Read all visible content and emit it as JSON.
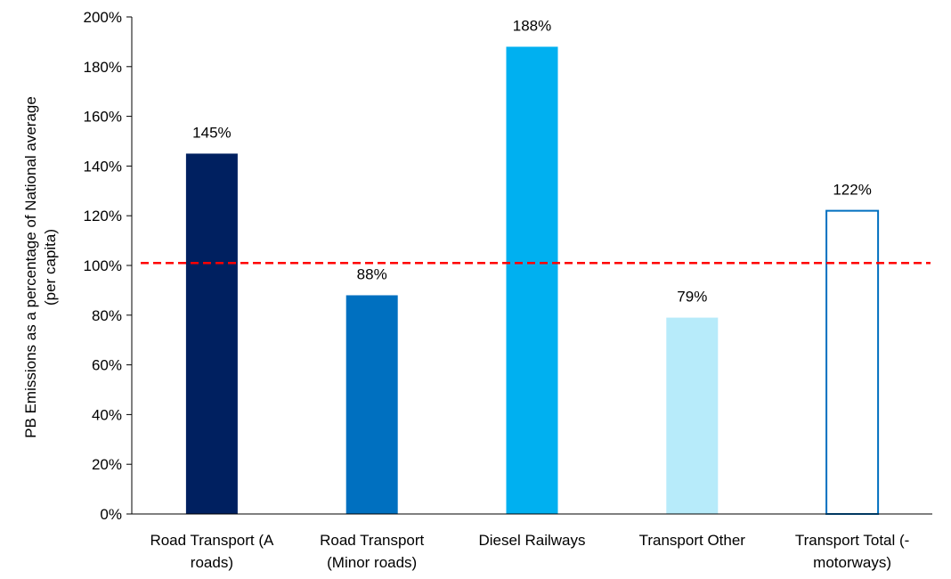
{
  "chart_data": {
    "type": "bar",
    "title": "",
    "xlabel": "",
    "ylabel_lines": [
      "PB Emissions  as a percentage of National average",
      "(per capita)"
    ],
    "ylim": [
      0,
      200
    ],
    "y_ticks": [
      "0%",
      "20%",
      "40%",
      "60%",
      "80%",
      "100%",
      "120%",
      "140%",
      "160%",
      "180%",
      "200%"
    ],
    "categories": [
      [
        "Road Transport (A",
        "roads)"
      ],
      [
        "Road Transport",
        "(Minor roads)"
      ],
      [
        "Diesel Railways"
      ],
      [
        "Transport Other"
      ],
      [
        "Transport Total (-",
        "motorways)"
      ]
    ],
    "values": [
      145,
      88,
      188,
      79,
      122
    ],
    "value_labels": [
      "145%",
      "88%",
      "188%",
      "79%",
      "122%"
    ],
    "bar_colors": [
      "#002060",
      "#0070C0",
      "#00B0F0",
      "#B7EBFA",
      "#FFFFFF"
    ],
    "bar_outline_colors": [
      "#002060",
      "#0070C0",
      "#00B0F0",
      "#B7EBFA",
      "#0070C0"
    ],
    "reference_line": {
      "value": 101,
      "color": "#FF0000",
      "style": "dashed"
    },
    "grid": false,
    "legend": "none"
  }
}
